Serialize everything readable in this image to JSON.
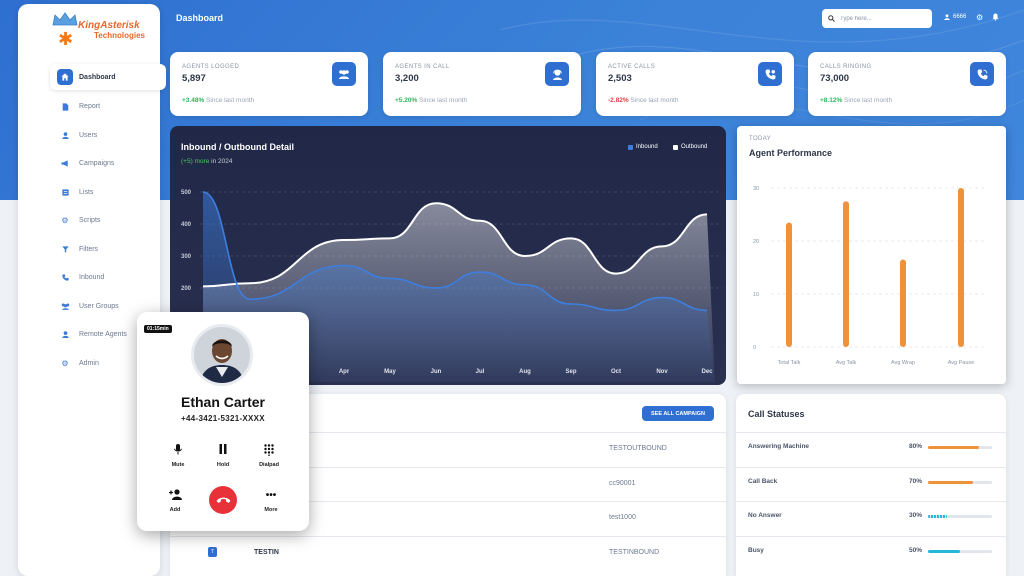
{
  "brand": {
    "name": "KingAsterisk",
    "sub": "Technologies"
  },
  "header": {
    "title": "Dashboard",
    "search_placeholder": "Type here...",
    "user": "6666"
  },
  "sidebar": {
    "items": [
      {
        "label": "Dashboard",
        "icon": "home-icon",
        "active": true
      },
      {
        "label": "Report",
        "icon": "document-icon"
      },
      {
        "label": "Users",
        "icon": "user-icon"
      },
      {
        "label": "Campaigns",
        "icon": "megaphone-icon"
      },
      {
        "label": "Lists",
        "icon": "list-icon"
      },
      {
        "label": "Scripts",
        "icon": "gear-icon"
      },
      {
        "label": "Filters",
        "icon": "filter-icon"
      },
      {
        "label": "Inbound",
        "icon": "phone-incoming-icon"
      },
      {
        "label": "User Groups",
        "icon": "users-icon"
      },
      {
        "label": "Remote Agents",
        "icon": "remote-agent-icon"
      },
      {
        "label": "Admin",
        "icon": "gear-icon"
      }
    ]
  },
  "stats": [
    {
      "label": "AGENTS LOGGED",
      "value": "5,897",
      "change": "+3.48%",
      "change_color": "#2fb55a",
      "note": "Since last month",
      "icon": "agents-icon"
    },
    {
      "label": "AGENTS IN CALL",
      "value": "3,200",
      "change": "+5.20%",
      "change_color": "#2fb55a",
      "note": "Since last month",
      "icon": "headset-icon"
    },
    {
      "label": "ACTIVE CALLS",
      "value": "2,503",
      "change": "-2.82%",
      "change_color": "#e53e3e",
      "note": "Since last month",
      "icon": "phone-active-icon"
    },
    {
      "label": "CALLS RINGING",
      "value": "73,000",
      "change": "+8.12%",
      "change_color": "#2fb55a",
      "note": "Since last month",
      "icon": "phone-ringing-icon"
    }
  ],
  "inout": {
    "title": "Inbound / Outbound Detail",
    "sub_highlight": "(+5) more",
    "sub_rest": "in 2024",
    "legend": [
      "Inbound",
      "Outbound"
    ]
  },
  "perf": {
    "today": "TODAY",
    "title": "Agent Performance"
  },
  "table": {
    "see_all": "SEE ALL CAMPAIGN",
    "rows": [
      {
        "name": "",
        "id": "TESTOUTBOUND"
      },
      {
        "name": "",
        "id": "cc90001"
      },
      {
        "name": "",
        "id": "test1000"
      },
      {
        "name": "TESTIN",
        "id": "TESTINBOUND",
        "badge": "T"
      }
    ]
  },
  "statuses": {
    "title": "Call Statuses",
    "rows": [
      {
        "name": "Answering Machine",
        "percent": "80%",
        "value": 0.8,
        "color": "#f0923a",
        "dashed": false
      },
      {
        "name": "Call Back",
        "percent": "70%",
        "value": 0.7,
        "color": "#f0923a",
        "dashed": false
      },
      {
        "name": "No Answer",
        "percent": "30%",
        "value": 0.3,
        "color": "#23b7d8",
        "dashed": true
      },
      {
        "name": "Busy",
        "percent": "50%",
        "value": 0.5,
        "color": "#23b7d8",
        "dashed": false
      }
    ]
  },
  "call": {
    "timer": "01:15min",
    "name": "Ethan Carter",
    "phone": "+44-3421-5321-XXXX",
    "controls": [
      {
        "label": "Mute",
        "icon": "microphone-icon"
      },
      {
        "label": "Hold",
        "icon": "pause-icon"
      },
      {
        "label": "Dialpad",
        "icon": "dialpad-icon"
      },
      {
        "label": "Add",
        "icon": "add-user-icon"
      },
      {
        "label": "More",
        "icon": "more-icon"
      }
    ]
  },
  "chart_data": [
    {
      "type": "area",
      "title": "Inbound / Outbound Detail",
      "categories": [
        "Apr",
        "May",
        "Jun",
        "Jul",
        "Aug",
        "Sep",
        "Oct",
        "Nov",
        "Dec"
      ],
      "series": [
        {
          "name": "Inbound",
          "color": "#3d7fe0",
          "values": [
            270,
            230,
            200,
            250,
            210,
            150,
            130,
            170,
            130
          ]
        },
        {
          "name": "Outbound",
          "color": "#ffffff",
          "values": [
            350,
            355,
            465,
            410,
            300,
            355,
            245,
            330,
            430
          ]
        }
      ],
      "ylim": [
        0,
        500
      ],
      "yticks": [
        "500",
        "400",
        "300",
        "200"
      ],
      "grid": true,
      "legend": "top-right"
    },
    {
      "type": "bar",
      "title": "Agent Performance",
      "categories": [
        "Total Talk",
        "Avg Talk",
        "Avg Wrap",
        "Avg Pause"
      ],
      "values": [
        23.5,
        27.5,
        16.5,
        30
      ],
      "yticks": [
        "30",
        "20",
        "10",
        "0"
      ],
      "ylim": [
        0,
        30
      ],
      "color": "#f0923a",
      "grid": true
    }
  ]
}
